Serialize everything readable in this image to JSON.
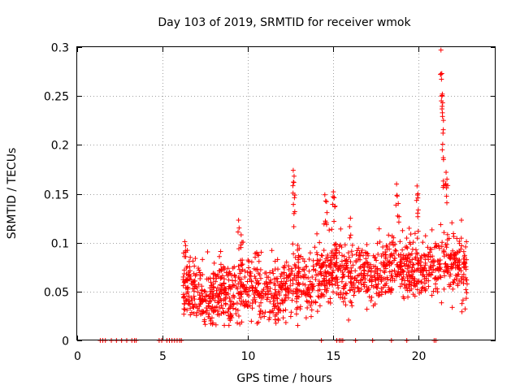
{
  "chart_data": {
    "type": "scatter",
    "title": "Day 103 of 2019, SRMTID for receiver wmok",
    "xlabel": "GPS time / hours",
    "ylabel": "SRMTID / TECUs",
    "xlim": [
      0,
      24.5
    ],
    "ylim": [
      0,
      0.3
    ],
    "x_ticks": [
      0,
      5,
      10,
      15,
      20
    ],
    "x_tick_labels": [
      "0",
      "5",
      "10",
      "15",
      "20"
    ],
    "y_ticks": [
      0,
      0.05,
      0.1,
      0.15,
      0.2,
      0.25,
      0.3
    ],
    "y_tick_labels": [
      "0",
      "0.05",
      "0.1",
      "0.15",
      "0.2",
      "0.25",
      "0.3"
    ],
    "grid": true,
    "marker": "+",
    "series": [
      {
        "name": "SRMTID",
        "color": "#ff0000",
        "zero_points_x": [
          1.35,
          1.5,
          1.65,
          2.0,
          2.3,
          2.6,
          2.9,
          3.2,
          3.35,
          3.45,
          4.8,
          4.95,
          5.25,
          5.4,
          5.55,
          5.7,
          5.85,
          6.0,
          6.1,
          14.3,
          15.2,
          15.35,
          15.45,
          15.55,
          16.3,
          17.3,
          18.4,
          19.3,
          20.9,
          21.0
        ],
        "segments": [
          [
            6.2,
            0.05
          ],
          [
            6.6,
            0.058
          ],
          [
            7.0,
            0.048
          ],
          [
            7.4,
            0.04
          ],
          [
            7.8,
            0.044
          ],
          [
            8.2,
            0.052
          ],
          [
            8.6,
            0.05
          ],
          [
            9.0,
            0.042
          ],
          [
            9.4,
            0.058
          ],
          [
            9.8,
            0.052
          ],
          [
            10.2,
            0.058
          ],
          [
            10.6,
            0.05
          ],
          [
            11.0,
            0.046
          ],
          [
            11.4,
            0.052
          ],
          [
            11.8,
            0.048
          ],
          [
            12.2,
            0.056
          ],
          [
            12.6,
            0.06
          ],
          [
            13.0,
            0.058
          ],
          [
            13.4,
            0.056
          ],
          [
            13.8,
            0.06
          ],
          [
            14.2,
            0.066
          ],
          [
            14.6,
            0.064
          ],
          [
            15.0,
            0.076
          ],
          [
            15.4,
            0.072
          ],
          [
            15.8,
            0.066
          ],
          [
            16.2,
            0.064
          ],
          [
            16.6,
            0.07
          ],
          [
            17.0,
            0.066
          ],
          [
            17.4,
            0.064
          ],
          [
            17.8,
            0.068
          ],
          [
            18.2,
            0.072
          ],
          [
            18.6,
            0.074
          ],
          [
            19.0,
            0.072
          ],
          [
            19.4,
            0.076
          ],
          [
            19.8,
            0.074
          ],
          [
            20.2,
            0.074
          ],
          [
            20.6,
            0.076
          ],
          [
            21.0,
            0.074
          ],
          [
            21.4,
            0.082
          ],
          [
            21.8,
            0.08
          ],
          [
            22.2,
            0.076
          ],
          [
            22.6,
            0.07
          ],
          [
            22.85,
            0.062
          ]
        ],
        "spikes": [
          [
            6.3,
            0.101
          ],
          [
            6.35,
            0.097
          ],
          [
            8.4,
            0.091
          ],
          [
            9.45,
            0.123
          ],
          [
            9.6,
            0.108
          ],
          [
            12.65,
            0.174
          ],
          [
            12.7,
            0.168
          ],
          [
            12.72,
            0.146
          ],
          [
            13.0,
            0.094
          ],
          [
            14.5,
            0.149
          ],
          [
            14.6,
            0.142
          ],
          [
            15.0,
            0.152
          ],
          [
            15.05,
            0.146
          ],
          [
            16.0,
            0.125
          ],
          [
            18.7,
            0.16
          ],
          [
            18.8,
            0.14
          ],
          [
            19.9,
            0.158
          ],
          [
            19.95,
            0.15
          ],
          [
            21.3,
            0.297
          ],
          [
            21.35,
            0.273
          ],
          [
            21.38,
            0.252
          ],
          [
            21.4,
            0.243
          ],
          [
            21.42,
            0.212
          ],
          [
            21.45,
            0.185
          ],
          [
            21.6,
            0.172
          ],
          [
            21.65,
            0.165
          ],
          [
            22.5,
            0.123
          ]
        ],
        "note": "≈1900 points between 6.2 h and 22.85 h, scattered roughly ±0.03 TECU around the segment envelope; isolated spikes listed; points at 0 listed in zero_points_x"
      }
    ]
  }
}
